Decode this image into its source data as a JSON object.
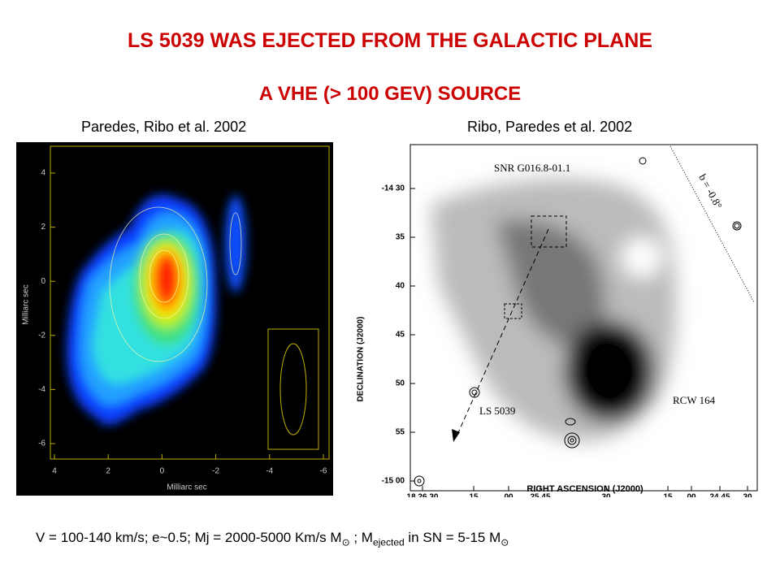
{
  "header": {
    "title": "LS 5039 WAS EJECTED FROM THE GALACTIC PLANE",
    "subtitle": "A VHE (> 100 GEV) SOURCE"
  },
  "left_panel": {
    "caption": "Paredes, Ribo et al. 2002",
    "x_axis_label": "Milliarc sec",
    "y_axis_label": "Milliarc sec",
    "x_ticks": [
      4,
      2,
      0,
      -2,
      -4,
      -6
    ],
    "y_ticks": [
      4,
      2,
      0,
      -2,
      -4,
      -6
    ]
  },
  "right_panel": {
    "caption": "Ribo, Paredes et al. 2002",
    "x_axis_label": "RIGHT ASCENSION (J2000)",
    "y_axis_label": "DECLINATION (J2000)",
    "x_ticks": [
      "18 26 30",
      "15",
      "00",
      "25 45",
      "30",
      "15",
      "00",
      "24 45",
      "30"
    ],
    "y_ticks": [
      "-14 30",
      "35",
      "40",
      "45",
      "50",
      "55",
      "-15 00"
    ],
    "annotations": {
      "snr": "SNR G016.8-01.1",
      "latitude": "b = -0.8°",
      "source": "LS 5039",
      "rcw": "RCW 164"
    }
  },
  "footer": {
    "part1": "V = 100-140 km/s; e~0.5; Mj = 2000-5000 Km/s M",
    "sun1": "⊙",
    "part2": " ;  M",
    "subscript": "ejected",
    "part3": " in SN  =  5-15 M",
    "sun2": "⊙"
  }
}
